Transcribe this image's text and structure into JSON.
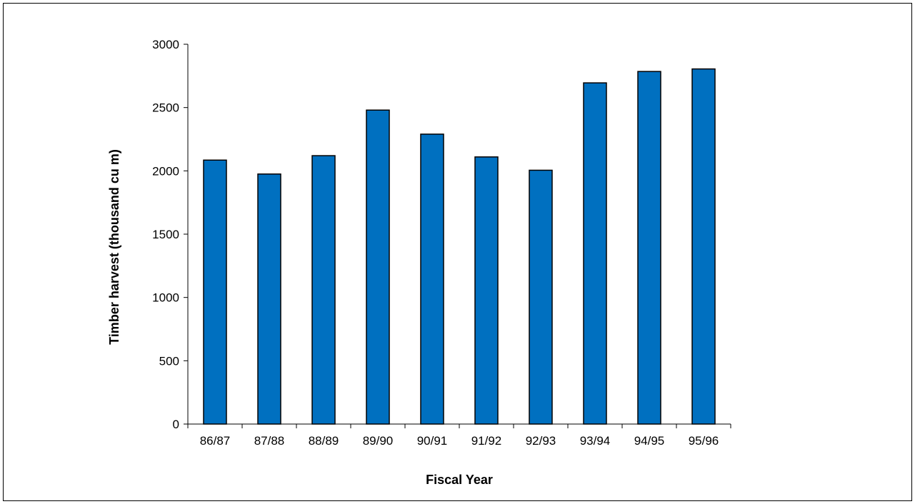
{
  "chart_data": {
    "type": "bar",
    "title": "",
    "xlabel": "Fiscal Year",
    "ylabel": "Timber harvest (thousand cu m)",
    "categories": [
      "86/87",
      "87/88",
      "88/89",
      "89/90",
      "90/91",
      "91/92",
      "92/93",
      "93/94",
      "94/95",
      "95/96"
    ],
    "values": [
      2085,
      1975,
      2120,
      2480,
      2290,
      2110,
      2005,
      2695,
      2785,
      2805
    ],
    "ylim": [
      0,
      3000
    ],
    "yticks": [
      0,
      500,
      1000,
      1500,
      2000,
      2500,
      3000
    ],
    "grid": false,
    "legend": "none",
    "bar_color": "#0070C0",
    "bar_edge_color": "#000000"
  }
}
